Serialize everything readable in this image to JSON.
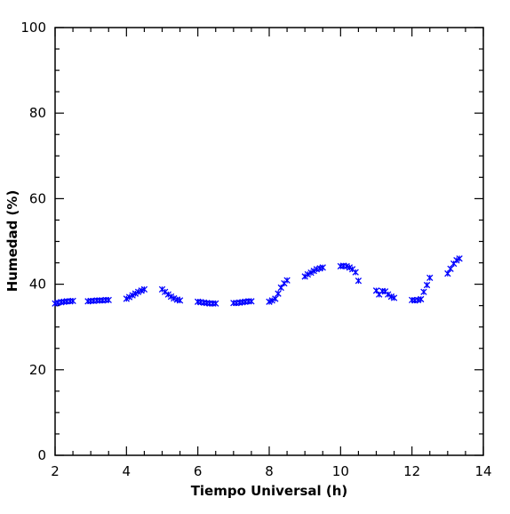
{
  "chart_data": {
    "type": "scatter",
    "title": "",
    "xlabel": "Tiempo Universal (h)",
    "ylabel": "Humedad (%)",
    "xlim": [
      2,
      14
    ],
    "ylim": [
      0,
      100
    ],
    "x_ticks": [
      2,
      4,
      6,
      8,
      10,
      12,
      14
    ],
    "y_ticks": [
      0,
      20,
      40,
      60,
      80,
      100
    ],
    "x_tick_labels": [
      "2",
      "4",
      "6",
      "8",
      "10",
      "12",
      "14"
    ],
    "y_tick_labels": [
      "0",
      "20",
      "40",
      "60",
      "80",
      "100"
    ],
    "x_minor_step": 0.5,
    "y_minor_step": 5,
    "marker": "x",
    "colors": {
      "points": "#0000ff",
      "axes": "#000000"
    },
    "grid": false,
    "series": [
      {
        "x": [
          2.0,
          2.08,
          2.17,
          2.25,
          2.33,
          2.42,
          2.5,
          2.92,
          3.0,
          3.08,
          3.17,
          3.25,
          3.33,
          3.42,
          3.5,
          4.0,
          4.08,
          4.17,
          4.25,
          4.33,
          4.42,
          4.5,
          5.0,
          5.08,
          5.17,
          5.25,
          5.33,
          5.42,
          5.5,
          6.0,
          6.08,
          6.17,
          6.25,
          6.33,
          6.42,
          6.5,
          7.0,
          7.08,
          7.17,
          7.25,
          7.33,
          7.42,
          7.5,
          8.0,
          8.08,
          8.17,
          8.25,
          8.33,
          8.42,
          8.5,
          9.0,
          9.08,
          9.17,
          9.25,
          9.33,
          9.42,
          9.5,
          10.0,
          10.08,
          10.17,
          10.25,
          10.33,
          10.42,
          10.5,
          11.0,
          11.08,
          11.17,
          11.25,
          11.33,
          11.42,
          11.5,
          12.0,
          12.08,
          12.17,
          12.25,
          12.33,
          12.42,
          12.5,
          13.0,
          13.08,
          13.17,
          13.25,
          13.33
        ],
        "y": [
          35.5,
          35.7,
          35.8,
          35.9,
          36.0,
          36.0,
          36.1,
          36.0,
          36.1,
          36.1,
          36.2,
          36.2,
          36.2,
          36.3,
          36.3,
          36.6,
          37.0,
          37.4,
          37.8,
          38.2,
          38.5,
          38.8,
          38.8,
          38.2,
          37.6,
          37.1,
          36.7,
          36.4,
          36.2,
          35.9,
          35.8,
          35.7,
          35.6,
          35.5,
          35.5,
          35.5,
          35.6,
          35.6,
          35.7,
          35.8,
          35.9,
          36.0,
          36.0,
          35.9,
          36.2,
          36.6,
          37.8,
          39.2,
          40.2,
          40.9,
          41.8,
          42.3,
          42.7,
          43.1,
          43.5,
          43.7,
          43.9,
          44.2,
          44.3,
          44.2,
          43.9,
          43.5,
          42.8,
          40.8,
          38.5,
          37.6,
          38.4,
          38.3,
          37.6,
          37.1,
          36.8,
          36.3,
          36.2,
          36.3,
          36.5,
          38.2,
          39.8,
          41.5,
          42.5,
          43.6,
          44.8,
          45.6,
          46.0
        ]
      }
    ]
  }
}
